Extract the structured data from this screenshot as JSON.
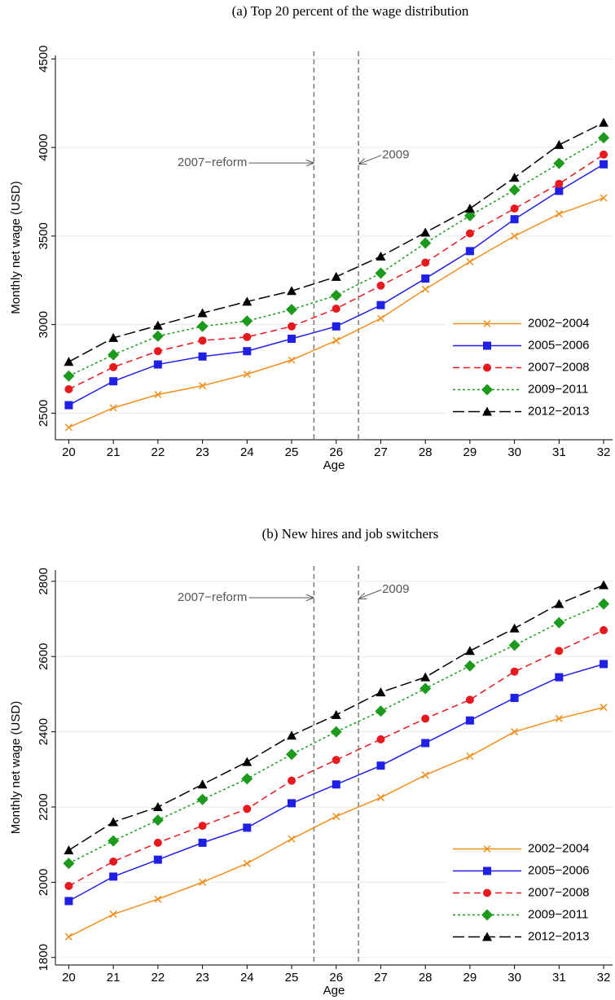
{
  "chart_data": [
    {
      "type": "line",
      "title": "(a) Top 20 percent of the wage distribution",
      "x_label": "Age",
      "y_label": "Monthly net wage (USD)",
      "x": [
        20,
        21,
        22,
        23,
        24,
        25,
        26,
        27,
        28,
        29,
        30,
        31,
        32
      ],
      "xlim": [
        19.7,
        32.2
      ],
      "xticks": [
        20,
        21,
        22,
        23,
        24,
        25,
        26,
        27,
        28,
        29,
        30,
        31,
        32
      ],
      "ylim": [
        2350,
        4520
      ],
      "yticks": [
        2500,
        3000,
        3500,
        4000,
        4500
      ],
      "grid": true,
      "reference_lines": [
        25.5,
        26.5
      ],
      "annotations": [
        "2007−reform",
        "2009"
      ],
      "legend": "lower right",
      "series": [
        {
          "name": "2002−2004",
          "color": "#f28e1c",
          "marker": "x",
          "values": [
            2420,
            2530,
            2605,
            2655,
            2720,
            2800,
            2910,
            3035,
            3200,
            3355,
            3500,
            3625,
            3715
          ]
        },
        {
          "name": "2005−2006",
          "color": "#1f1fe6",
          "marker": "square",
          "values": [
            2545,
            2680,
            2775,
            2820,
            2850,
            2920,
            2990,
            3110,
            3260,
            3415,
            3595,
            3755,
            3905
          ]
        },
        {
          "name": "2007−2008",
          "color": "#e8191e",
          "marker": "circle",
          "values": [
            2635,
            2760,
            2850,
            2910,
            2930,
            2990,
            3090,
            3220,
            3350,
            3515,
            3655,
            3795,
            3960
          ]
        },
        {
          "name": "2009−2011",
          "color": "#1c9a1c",
          "marker": "diamond",
          "values": [
            2710,
            2830,
            2935,
            2990,
            3020,
            3085,
            3165,
            3290,
            3460,
            3615,
            3760,
            3910,
            4055
          ]
        },
        {
          "name": "2012−2013",
          "color": "#000000",
          "marker": "triangle",
          "values": [
            2790,
            2925,
            2995,
            3065,
            3130,
            3190,
            3270,
            3385,
            3520,
            3655,
            3830,
            4015,
            4140
          ]
        }
      ]
    },
    {
      "type": "line",
      "title": "(b) New hires and job switchers",
      "x_label": "Age",
      "y_label": "Monthly net wage (USD)",
      "x": [
        20,
        21,
        22,
        23,
        24,
        25,
        26,
        27,
        28,
        29,
        30,
        31,
        32
      ],
      "xlim": [
        19.7,
        32.2
      ],
      "xticks": [
        20,
        21,
        22,
        23,
        24,
        25,
        26,
        27,
        28,
        29,
        30,
        31,
        32
      ],
      "ylim": [
        1780,
        2830
      ],
      "yticks": [
        1800,
        2000,
        2200,
        2400,
        2600,
        2800
      ],
      "grid": true,
      "reference_lines": [
        25.5,
        26.5
      ],
      "annotations": [
        "2007−reform",
        "2009"
      ],
      "legend": "lower right",
      "series": [
        {
          "name": "2002−2004",
          "color": "#f28e1c",
          "marker": "x",
          "values": [
            1855,
            1915,
            1955,
            2000,
            2050,
            2115,
            2175,
            2225,
            2285,
            2335,
            2400,
            2435,
            2465
          ]
        },
        {
          "name": "2005−2006",
          "color": "#1f1fe6",
          "marker": "square",
          "values": [
            1950,
            2015,
            2060,
            2105,
            2145,
            2210,
            2260,
            2310,
            2370,
            2430,
            2490,
            2545,
            2580
          ]
        },
        {
          "name": "2007−2008",
          "color": "#e8191e",
          "marker": "circle",
          "values": [
            1990,
            2055,
            2105,
            2150,
            2195,
            2270,
            2325,
            2380,
            2435,
            2485,
            2560,
            2615,
            2670
          ]
        },
        {
          "name": "2009−2011",
          "color": "#1c9a1c",
          "marker": "diamond",
          "values": [
            2050,
            2110,
            2165,
            2220,
            2275,
            2340,
            2400,
            2455,
            2515,
            2575,
            2630,
            2690,
            2740
          ]
        },
        {
          "name": "2012−2013",
          "color": "#000000",
          "marker": "triangle",
          "values": [
            2085,
            2160,
            2200,
            2260,
            2320,
            2390,
            2445,
            2505,
            2545,
            2615,
            2675,
            2740,
            2790
          ]
        }
      ]
    }
  ]
}
